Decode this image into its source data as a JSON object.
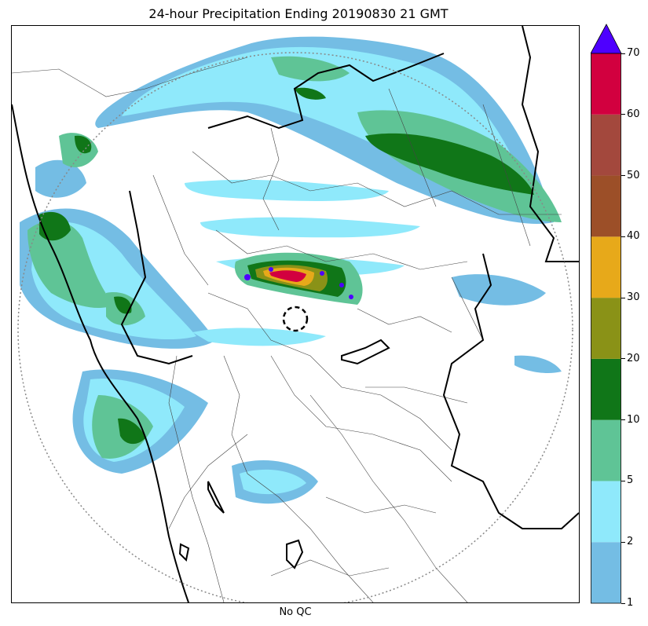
{
  "title": "24-hour Precipitation Ending 20190830 21 GMT",
  "xlabel": "No QC",
  "colorbar": {
    "levels": [
      "1",
      "2",
      "5",
      "10",
      "20",
      "30",
      "40",
      "50",
      "60",
      "70"
    ],
    "colors": [
      "#74bde4",
      "#8fe9fb",
      "#5fc496",
      "#107618",
      "#8a9217",
      "#e7a91a",
      "#9c4f28",
      "#a3483d",
      "#d2003f"
    ],
    "extend_color": "#4e00ff",
    "units_hint": ""
  },
  "map": {
    "radar_range_ring": "dotted",
    "radar_site_marker": "dashed-circle",
    "colors": {
      "coast": "#000000",
      "state_border": "#000000",
      "district_border": "#444444",
      "ring": "#888888"
    }
  }
}
